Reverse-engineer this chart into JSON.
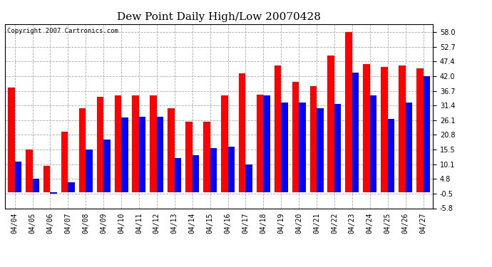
{
  "title": "Dew Point Daily High/Low 20070428",
  "copyright": "Copyright 2007 Cartronics.com",
  "dates": [
    "04/04",
    "04/05",
    "04/06",
    "04/07",
    "04/08",
    "04/09",
    "04/10",
    "04/11",
    "04/12",
    "04/13",
    "04/14",
    "04/15",
    "04/16",
    "04/17",
    "04/18",
    "04/19",
    "04/20",
    "04/21",
    "04/22",
    "04/23",
    "04/24",
    "04/25",
    "04/26",
    "04/27"
  ],
  "highs": [
    38.0,
    15.5,
    9.5,
    22.0,
    30.5,
    34.5,
    35.0,
    35.0,
    35.0,
    30.5,
    25.5,
    25.5,
    35.0,
    43.0,
    35.5,
    46.0,
    40.0,
    38.5,
    49.5,
    58.0,
    46.5,
    45.5,
    46.0,
    45.0
  ],
  "lows": [
    11.0,
    5.0,
    -0.5,
    3.5,
    15.5,
    19.0,
    27.0,
    27.5,
    27.5,
    12.5,
    13.5,
    16.0,
    16.5,
    10.0,
    35.0,
    32.5,
    32.5,
    30.5,
    32.0,
    43.5,
    35.0,
    26.5,
    32.5,
    42.0
  ],
  "high_color": "#ff0000",
  "low_color": "#0000ff",
  "background_color": "#ffffff",
  "grid_color": "#aaaaaa",
  "yticks": [
    -5.8,
    -0.5,
    4.8,
    10.1,
    15.5,
    20.8,
    26.1,
    31.4,
    36.7,
    42.0,
    47.4,
    52.7,
    58.0
  ],
  "ylim": [
    -5.8,
    61.0
  ],
  "bar_width": 0.38,
  "title_fontsize": 11,
  "tick_fontsize": 7,
  "copyright_fontsize": 6.5
}
